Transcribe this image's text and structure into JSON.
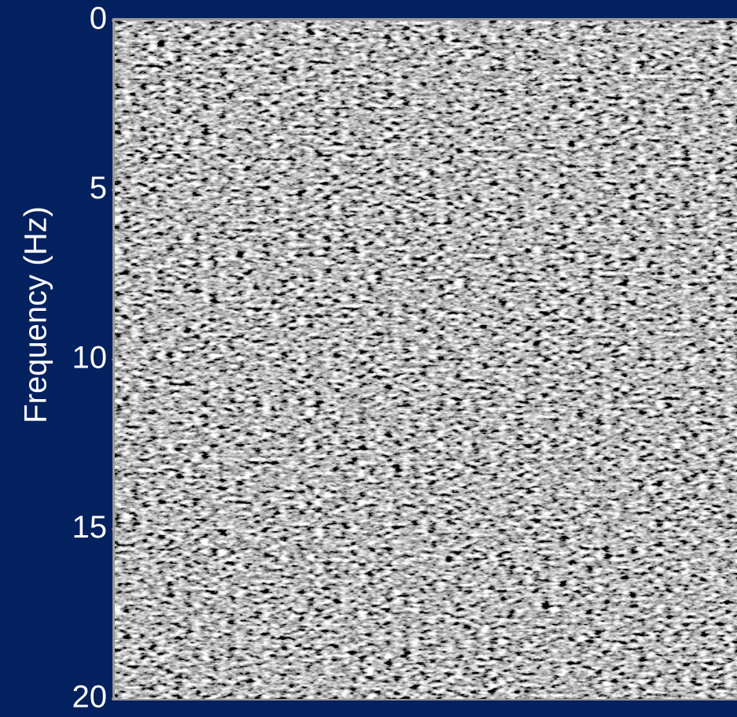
{
  "chart_data": {
    "type": "image",
    "ylabel": "Frequency (Hz)",
    "ylim": [
      0,
      20
    ],
    "yticks": [
      0,
      5,
      10,
      15,
      20
    ],
    "background": "#03205f"
  }
}
